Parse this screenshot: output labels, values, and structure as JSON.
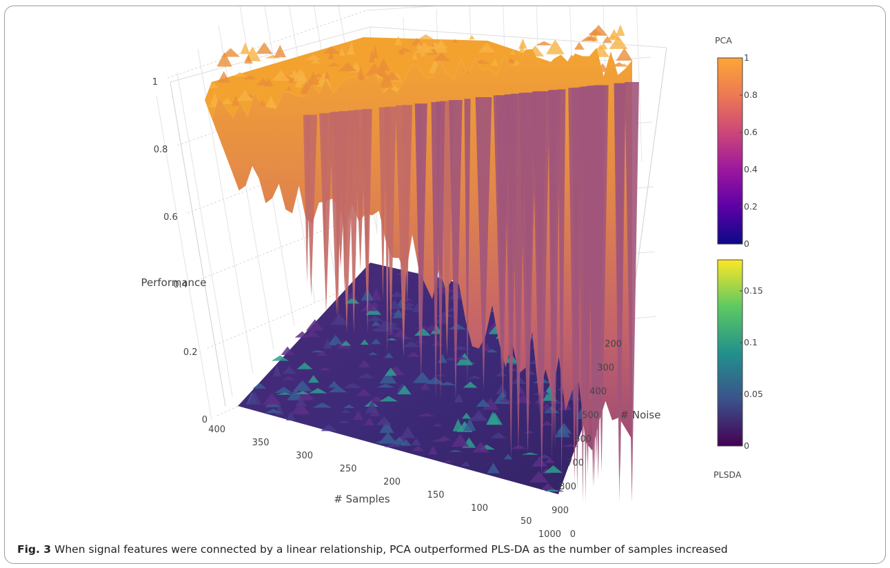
{
  "caption": {
    "label": "Fig. 3",
    "text": "When signal features were connected by a linear relationship, PCA outperformed PLS-DA as the number of samples increased"
  },
  "chart_data": {
    "type": "surface3d",
    "z_axis": {
      "title": "Performance",
      "ticks": [
        "0",
        "0.2",
        "0.4",
        "0.6",
        "0.8",
        "1"
      ],
      "tick_values": [
        0,
        0.2,
        0.4,
        0.6,
        0.8,
        1
      ],
      "range": [
        0,
        1
      ]
    },
    "samples_axis": {
      "title": "# Samples",
      "ticks": [
        "400",
        "350",
        "300",
        "250",
        "200",
        "150",
        "100",
        "50",
        "0"
      ],
      "range": [
        0,
        400
      ]
    },
    "noise_axis": {
      "title": "# Noise",
      "ticks": [
        "200",
        "300",
        "400",
        "500",
        "600",
        "700",
        "800",
        "900",
        "1000"
      ],
      "range": [
        150,
        1000
      ]
    },
    "series": [
      {
        "name": "PCA",
        "description_values": "Performance near 1 for most samples; drops toward 0 as # Samples approaches 0",
        "approx_profile": {
          "samples": [
            400,
            300,
            200,
            150,
            100,
            50,
            0
          ],
          "performance": [
            0.97,
            0.96,
            0.94,
            0.9,
            0.75,
            0.4,
            0.05
          ]
        },
        "colorscale": [
          "#0d0887",
          "#5c01a6",
          "#9c179e",
          "#cc4778",
          "#ed7953",
          "#fdb42f",
          "#f0a030"
        ],
        "colorbar": {
          "title": "PCA",
          "ticks": [
            "0",
            "0.2",
            "0.4",
            "0.6",
            "0.8",
            "1"
          ],
          "range": [
            0,
            1
          ]
        }
      },
      {
        "name": "PLSDA",
        "description_values": "Performance close to 0 across all samples and noise levels",
        "approx_profile": {
          "samples": [
            400,
            300,
            200,
            100,
            0
          ],
          "performance": [
            0.03,
            0.03,
            0.04,
            0.03,
            0.02
          ]
        },
        "colorscale": [
          "#440154",
          "#3b528b",
          "#21918c",
          "#5ec962",
          "#fde725"
        ],
        "colorbar": {
          "title": "PLSDA",
          "ticks": [
            "0",
            "0.05",
            "0.1",
            "0.15"
          ],
          "range": [
            0,
            0.18
          ]
        }
      }
    ]
  }
}
